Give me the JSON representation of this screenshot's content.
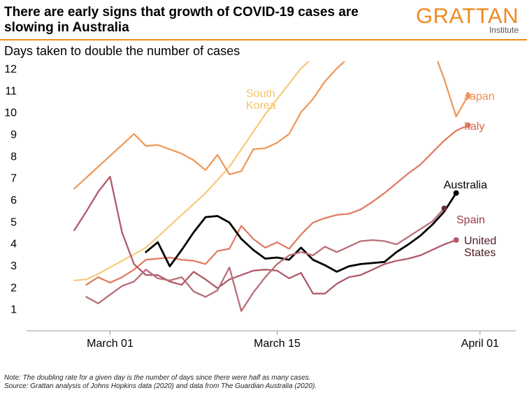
{
  "header": {
    "title": "There are early signs that growth of COVID-19 cases are slowing in Australia",
    "logo_main": "GRATTAN",
    "logo_sub": "Institute",
    "subtitle": "Days taken to double the number of cases"
  },
  "notes": {
    "note": "Note: The doubling rate for a given day is the number of days since there were half as many cases.",
    "source": "Source: Grattan analysis of Johns Hopkins data (2020) and data from The Guardian Australia (2020)."
  },
  "chart_data": {
    "type": "line",
    "title": "Days taken to double the number of cases",
    "x_unit": "date (2020)",
    "xlim": [
      "2020-02-23",
      "2020-04-04"
    ],
    "ylim": [
      0,
      12
    ],
    "y_ticks": [
      1,
      2,
      3,
      4,
      5,
      6,
      7,
      8,
      9,
      10,
      11,
      12
    ],
    "x_ticks": [
      {
        "date": "2020-03-01",
        "label": "March 01"
      },
      {
        "date": "2020-03-15",
        "label": "March 15"
      },
      {
        "date": "2020-04-01",
        "label": "April 01"
      }
    ],
    "grid": false,
    "series": [
      {
        "name": "South Korea",
        "label_lines": [
          "South",
          "Korea"
        ],
        "color": "#f6cb7e",
        "end_marker": false,
        "points": [
          [
            "2020-02-27",
            2.3
          ],
          [
            "2020-02-28",
            2.35
          ],
          [
            "2020-02-29",
            2.6
          ],
          [
            "2020-03-01",
            2.9
          ],
          [
            "2020-03-02",
            3.2
          ],
          [
            "2020-03-03",
            3.5
          ],
          [
            "2020-03-04",
            3.8
          ],
          [
            "2020-03-05",
            4.3
          ],
          [
            "2020-03-06",
            4.8
          ],
          [
            "2020-03-07",
            5.3
          ],
          [
            "2020-03-08",
            5.8
          ],
          [
            "2020-03-09",
            6.3
          ],
          [
            "2020-03-10",
            6.9
          ],
          [
            "2020-03-11",
            7.5
          ],
          [
            "2020-03-12",
            8.3
          ],
          [
            "2020-03-13",
            9.1
          ],
          [
            "2020-03-14",
            9.9
          ],
          [
            "2020-03-15",
            10.6
          ],
          [
            "2020-03-16",
            11.3
          ],
          [
            "2020-03-17",
            12.0
          ],
          [
            "2020-03-18",
            12.5
          ]
        ]
      },
      {
        "name": "Japan",
        "label_lines": [
          "Japan"
        ],
        "color": "#ee9a5b",
        "end_marker": true,
        "points": [
          [
            "2020-02-27",
            6.5
          ],
          [
            "2020-02-28",
            7.0
          ],
          [
            "2020-02-29",
            7.5
          ],
          [
            "2020-03-01",
            8.0
          ],
          [
            "2020-03-02",
            8.5
          ],
          [
            "2020-03-03",
            9.0
          ],
          [
            "2020-03-04",
            8.45
          ],
          [
            "2020-03-05",
            8.5
          ],
          [
            "2020-03-06",
            8.3
          ],
          [
            "2020-03-07",
            8.1
          ],
          [
            "2020-03-08",
            7.8
          ],
          [
            "2020-03-09",
            7.35
          ],
          [
            "2020-03-10",
            8.05
          ],
          [
            "2020-03-11",
            7.15
          ],
          [
            "2020-03-12",
            7.3
          ],
          [
            "2020-03-13",
            8.3
          ],
          [
            "2020-03-14",
            8.35
          ],
          [
            "2020-03-15",
            8.6
          ],
          [
            "2020-03-16",
            9.0
          ],
          [
            "2020-03-17",
            10.0
          ],
          [
            "2020-03-18",
            10.6
          ],
          [
            "2020-03-19",
            11.4
          ],
          [
            "2020-03-20",
            12.0
          ],
          [
            "2020-03-21",
            12.5
          ],
          [
            "2020-03-28",
            13.0
          ],
          [
            "2020-03-29",
            11.5
          ],
          [
            "2020-03-30",
            9.8
          ],
          [
            "2020-03-31",
            10.75
          ]
        ]
      },
      {
        "name": "Italy",
        "label_lines": [
          "Italy"
        ],
        "color": "#e07d62",
        "end_marker": true,
        "points": [
          [
            "2020-02-28",
            2.1
          ],
          [
            "2020-02-29",
            2.45
          ],
          [
            "2020-03-01",
            2.2
          ],
          [
            "2020-03-02",
            2.45
          ],
          [
            "2020-03-03",
            2.8
          ],
          [
            "2020-03-04",
            3.25
          ],
          [
            "2020-03-05",
            3.3
          ],
          [
            "2020-03-06",
            3.35
          ],
          [
            "2020-03-07",
            3.25
          ],
          [
            "2020-03-08",
            3.2
          ],
          [
            "2020-03-09",
            3.05
          ],
          [
            "2020-03-10",
            3.65
          ],
          [
            "2020-03-11",
            3.75
          ],
          [
            "2020-03-12",
            4.8
          ],
          [
            "2020-03-13",
            4.2
          ],
          [
            "2020-03-14",
            3.8
          ],
          [
            "2020-03-15",
            4.05
          ],
          [
            "2020-03-16",
            3.75
          ],
          [
            "2020-03-17",
            4.4
          ],
          [
            "2020-03-18",
            4.95
          ],
          [
            "2020-03-19",
            5.15
          ],
          [
            "2020-03-20",
            5.3
          ],
          [
            "2020-03-21",
            5.35
          ],
          [
            "2020-03-22",
            5.55
          ],
          [
            "2020-03-23",
            5.9
          ],
          [
            "2020-03-24",
            6.3
          ],
          [
            "2020-03-25",
            6.75
          ],
          [
            "2020-03-26",
            7.2
          ],
          [
            "2020-03-27",
            7.6
          ],
          [
            "2020-03-28",
            8.15
          ],
          [
            "2020-03-29",
            8.7
          ],
          [
            "2020-03-30",
            9.15
          ],
          [
            "2020-03-31",
            9.4
          ]
        ]
      },
      {
        "name": "Australia",
        "label_lines": [
          "Australia"
        ],
        "color": "#000000",
        "end_marker": true,
        "width": 2.8,
        "points": [
          [
            "2020-03-04",
            3.6
          ],
          [
            "2020-03-05",
            4.05
          ],
          [
            "2020-03-06",
            2.95
          ],
          [
            "2020-03-07",
            3.7
          ],
          [
            "2020-03-08",
            4.5
          ],
          [
            "2020-03-09",
            5.2
          ],
          [
            "2020-03-10",
            5.25
          ],
          [
            "2020-03-11",
            4.95
          ],
          [
            "2020-03-12",
            4.2
          ],
          [
            "2020-03-13",
            3.7
          ],
          [
            "2020-03-14",
            3.3
          ],
          [
            "2020-03-15",
            3.35
          ],
          [
            "2020-03-16",
            3.25
          ],
          [
            "2020-03-17",
            3.8
          ],
          [
            "2020-03-18",
            3.25
          ],
          [
            "2020-03-19",
            3.0
          ],
          [
            "2020-03-20",
            2.7
          ],
          [
            "2020-03-21",
            2.95
          ],
          [
            "2020-03-22",
            3.05
          ],
          [
            "2020-03-23",
            3.1
          ],
          [
            "2020-03-24",
            3.15
          ],
          [
            "2020-03-25",
            3.6
          ],
          [
            "2020-03-26",
            3.95
          ],
          [
            "2020-03-27",
            4.35
          ],
          [
            "2020-03-28",
            4.85
          ],
          [
            "2020-03-29",
            5.45
          ],
          [
            "2020-03-30",
            6.3
          ]
        ]
      },
      {
        "name": "Spain",
        "label_lines": [
          "Spain"
        ],
        "color": "#b05a6a",
        "end_marker": true,
        "points": [
          [
            "2020-02-27",
            4.6
          ],
          [
            "2020-02-28",
            5.45
          ],
          [
            "2020-02-29",
            6.35
          ],
          [
            "2020-03-01",
            7.05
          ],
          [
            "2020-03-02",
            4.5
          ],
          [
            "2020-03-03",
            3.05
          ],
          [
            "2020-03-04",
            2.55
          ],
          [
            "2020-03-05",
            2.55
          ],
          [
            "2020-03-06",
            2.25
          ],
          [
            "2020-03-07",
            2.1
          ],
          [
            "2020-03-08",
            2.7
          ],
          [
            "2020-03-09",
            2.35
          ],
          [
            "2020-03-10",
            1.95
          ],
          [
            "2020-03-11",
            2.35
          ],
          [
            "2020-03-12",
            2.55
          ],
          [
            "2020-03-13",
            2.75
          ],
          [
            "2020-03-14",
            2.8
          ],
          [
            "2020-03-15",
            2.75
          ],
          [
            "2020-03-16",
            2.4
          ],
          [
            "2020-03-17",
            2.65
          ],
          [
            "2020-03-18",
            1.7
          ],
          [
            "2020-03-19",
            1.7
          ],
          [
            "2020-03-20",
            2.15
          ],
          [
            "2020-03-21",
            2.45
          ],
          [
            "2020-03-22",
            2.55
          ],
          [
            "2020-03-23",
            2.8
          ],
          [
            "2020-03-24",
            3.05
          ],
          [
            "2020-03-25",
            3.2
          ],
          [
            "2020-03-26",
            3.3
          ],
          [
            "2020-03-27",
            3.45
          ],
          [
            "2020-03-28",
            3.7
          ],
          [
            "2020-03-29",
            3.95
          ],
          [
            "2020-03-30",
            4.15
          ]
        ]
      },
      {
        "name": "United States",
        "label_lines": [
          "United",
          "States"
        ],
        "color": "#6b2b3a",
        "end_marker": true,
        "line_color": "#b86e77",
        "points": [
          [
            "2020-02-28",
            1.55
          ],
          [
            "2020-02-29",
            1.25
          ],
          [
            "2020-03-01",
            1.65
          ],
          [
            "2020-03-02",
            2.05
          ],
          [
            "2020-03-03",
            2.25
          ],
          [
            "2020-03-04",
            2.8
          ],
          [
            "2020-03-05",
            2.4
          ],
          [
            "2020-03-06",
            2.3
          ],
          [
            "2020-03-07",
            2.45
          ],
          [
            "2020-03-08",
            1.8
          ],
          [
            "2020-03-09",
            1.55
          ],
          [
            "2020-03-10",
            1.85
          ],
          [
            "2020-03-11",
            2.9
          ],
          [
            "2020-03-12",
            0.9
          ],
          [
            "2020-03-13",
            1.75
          ],
          [
            "2020-03-14",
            2.45
          ],
          [
            "2020-03-15",
            3.05
          ],
          [
            "2020-03-16",
            3.45
          ],
          [
            "2020-03-17",
            3.6
          ],
          [
            "2020-03-18",
            3.45
          ],
          [
            "2020-03-19",
            3.85
          ],
          [
            "2020-03-20",
            3.6
          ],
          [
            "2020-03-21",
            3.85
          ],
          [
            "2020-03-22",
            4.1
          ],
          [
            "2020-03-23",
            4.15
          ],
          [
            "2020-03-24",
            4.1
          ],
          [
            "2020-03-25",
            3.95
          ],
          [
            "2020-03-26",
            4.3
          ],
          [
            "2020-03-27",
            4.65
          ],
          [
            "2020-03-28",
            5.0
          ],
          [
            "2020-03-29",
            5.6
          ]
        ]
      }
    ]
  }
}
